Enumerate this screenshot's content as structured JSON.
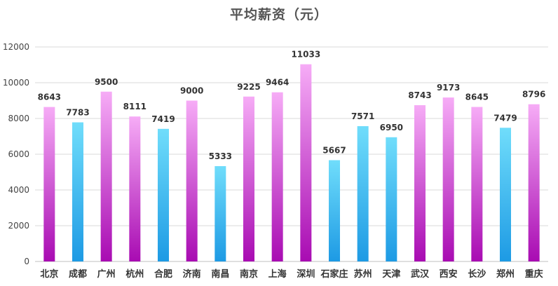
{
  "chart_data": {
    "type": "bar",
    "title": "平均薪资（元）",
    "xlabel": "",
    "ylabel": "",
    "ylim": [
      0,
      12000
    ],
    "yticks": [
      0,
      2000,
      4000,
      6000,
      8000,
      10000,
      12000
    ],
    "grid": true,
    "legend": "none",
    "categories": [
      "北京",
      "成都",
      "广州",
      "杭州",
      "合肥",
      "济南",
      "南昌",
      "南京",
      "上海",
      "深圳",
      "石家庄",
      "苏州",
      "天津",
      "武汉",
      "西安",
      "长沙",
      "郑州",
      "重庆"
    ],
    "values": [
      8643,
      7783,
      9500,
      8111,
      7419,
      9000,
      5333,
      9225,
      9464,
      11033,
      5667,
      7571,
      6950,
      8743,
      9173,
      8645,
      7479,
      8796
    ],
    "bar_styles": [
      "pink",
      "blue",
      "pink",
      "pink",
      "blue",
      "pink",
      "blue",
      "pink",
      "pink",
      "pink",
      "blue",
      "blue",
      "blue",
      "pink",
      "pink",
      "pink",
      "blue",
      "pink"
    ],
    "colors": {
      "pink_top": "#f6acf6",
      "pink_bottom": "#a80bb2",
      "blue_top": "#70ddfb",
      "blue_bottom": "#1d9ae4"
    }
  }
}
